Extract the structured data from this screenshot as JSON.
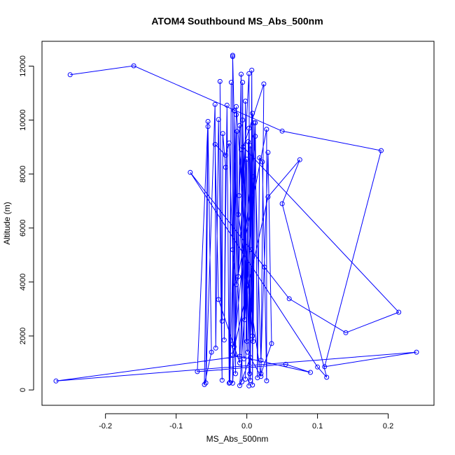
{
  "chart_data": {
    "type": "line",
    "title": "ATOM4 Southbound MS_Abs_500nm",
    "xlabel": "MS_Abs_500nm",
    "ylabel": "Altitude (m)",
    "xlim": [
      -0.27,
      0.245
    ],
    "ylim": [
      -50,
      12400
    ],
    "x_ticks": [
      -0.2,
      -0.1,
      0.0,
      0.1,
      0.2
    ],
    "x_tick_labels": [
      "-0.2",
      "-0.1",
      "0.0",
      "0.1",
      "0.2"
    ],
    "y_ticks": [
      0,
      2000,
      4000,
      6000,
      8000,
      10000,
      12000
    ],
    "y_tick_labels": [
      "0",
      "2000",
      "4000",
      "6000",
      "8000",
      "10000",
      "12000"
    ],
    "grid": false,
    "marker": "open-circle",
    "series": [
      {
        "color": "#0000ff",
        "points": [
          [
            -0.25,
            11680
          ],
          [
            -0.16,
            12010
          ],
          [
            0.05,
            9590
          ],
          [
            0.19,
            8870
          ],
          [
            0.11,
            860
          ],
          [
            0.24,
            1400
          ],
          [
            -0.27,
            330
          ],
          [
            -0.01,
            1250
          ],
          [
            -0.02,
            12350
          ],
          [
            -0.02,
            12400
          ],
          [
            -0.02,
            250
          ],
          [
            0.003,
            11720
          ],
          [
            0.005,
            350
          ],
          [
            0.007,
            11850
          ],
          [
            0.008,
            180
          ],
          [
            0.01,
            9900
          ],
          [
            0.02,
            1100
          ],
          [
            0.03,
            8800
          ],
          [
            0.035,
            1720
          ],
          [
            0.02,
            600
          ],
          [
            0.024,
            11340
          ],
          [
            -0.005,
            9000
          ],
          [
            0.215,
            2880
          ],
          [
            0.14,
            2120
          ],
          [
            0.06,
            3380
          ],
          [
            -0.08,
            8060
          ],
          [
            0.1,
            850
          ],
          [
            0.113,
            470
          ],
          [
            0.05,
            6900
          ],
          [
            0.075,
            8530
          ],
          [
            0.03,
            7150
          ],
          [
            -0.02,
            1300
          ],
          [
            0.09,
            650
          ],
          [
            0.055,
            950
          ],
          [
            -0.07,
            680
          ],
          [
            -0.055,
            9950
          ],
          [
            -0.06,
            200
          ],
          [
            -0.05,
            1400
          ],
          [
            -0.055,
            9760
          ],
          [
            -0.058,
            260
          ],
          [
            -0.045,
            10580
          ],
          [
            -0.044,
            1550
          ],
          [
            -0.04,
            10020
          ],
          [
            -0.035,
            360
          ],
          [
            -0.038,
            11430
          ],
          [
            -0.035,
            2550
          ],
          [
            -0.034,
            9500
          ],
          [
            -0.03,
            8250
          ],
          [
            -0.032,
            1850
          ],
          [
            -0.028,
            10550
          ],
          [
            -0.025,
            250
          ],
          [
            -0.022,
            11400
          ],
          [
            -0.024,
            280
          ],
          [
            -0.015,
            10200
          ],
          [
            -0.02,
            1700
          ],
          [
            -0.018,
            10350
          ],
          [
            -0.016,
            600
          ],
          [
            -0.014,
            9580
          ],
          [
            -0.012,
            4200
          ],
          [
            -0.01,
            9800
          ],
          [
            -0.011,
            7200
          ],
          [
            -0.008,
            11700
          ],
          [
            -0.007,
            300
          ],
          [
            -0.006,
            11400
          ],
          [
            -0.004,
            1150
          ],
          [
            -0.002,
            10700
          ],
          [
            0.0,
            1800
          ],
          [
            0.002,
            9200
          ],
          [
            0.003,
            150
          ],
          [
            0.005,
            9050
          ],
          [
            0.006,
            5200
          ],
          [
            0.008,
            10250
          ],
          [
            0.009,
            1800
          ],
          [
            0.012,
            9900
          ],
          [
            0.015,
            450
          ],
          [
            0.018,
            8600
          ],
          [
            0.022,
            8450
          ],
          [
            0.025,
            4550
          ],
          [
            0.028,
            340
          ],
          [
            0.028,
            9660
          ],
          [
            -0.015,
            3900
          ],
          [
            -0.02,
            5200
          ],
          [
            -0.025,
            9150
          ],
          [
            -0.03,
            8700
          ],
          [
            -0.045,
            9100
          ],
          [
            -0.04,
            3350
          ],
          [
            -0.01,
            1000
          ],
          [
            0.0,
            8550
          ],
          [
            -0.003,
            2600
          ],
          [
            0.01,
            7900
          ],
          [
            -0.01,
            160
          ],
          [
            0.005,
            1200
          ],
          [
            0.02,
            500
          ],
          [
            -0.012,
            6500
          ],
          [
            -0.008,
            8900
          ],
          [
            0.001,
            1400
          ],
          [
            -0.006,
            10000
          ],
          [
            0.004,
            600
          ],
          [
            0.012,
            9400
          ],
          [
            -0.018,
            1600
          ],
          [
            -0.015,
            10500
          ],
          [
            0.008,
            2000
          ],
          [
            0.003,
            9700
          ],
          [
            -0.002,
            400
          ]
        ]
      }
    ]
  }
}
